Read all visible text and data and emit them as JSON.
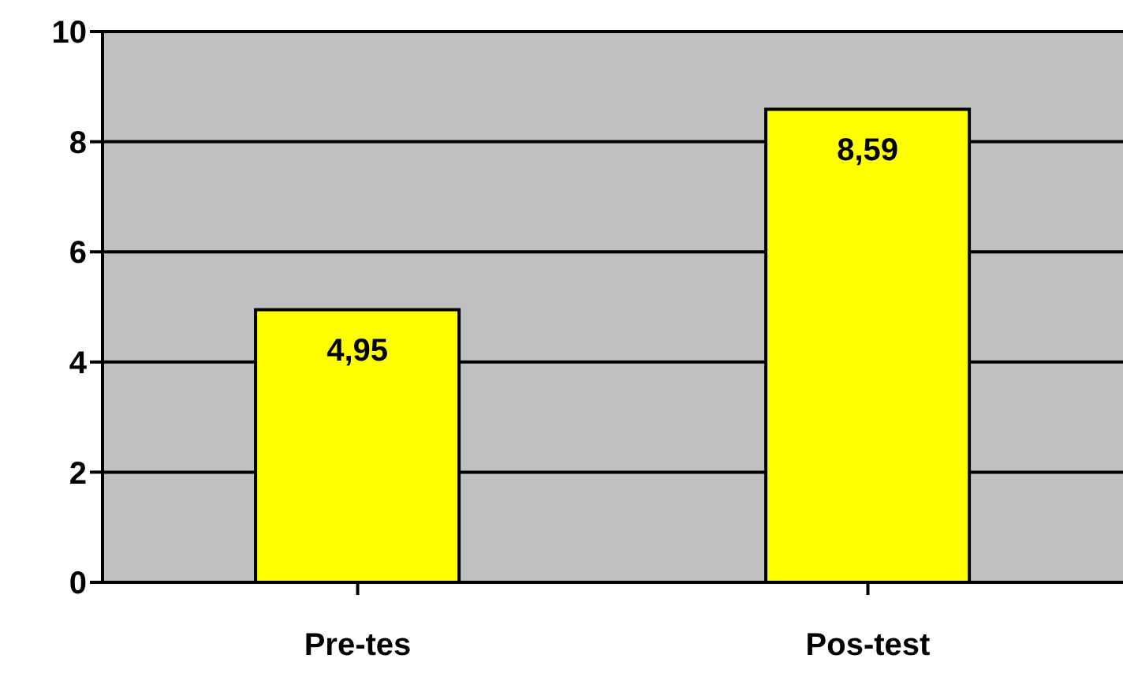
{
  "chart_data": {
    "type": "bar",
    "categories": [
      "Pre-tes",
      "Pos-test"
    ],
    "values": [
      4.95,
      8.59
    ],
    "value_labels": [
      "4,95",
      "8,59"
    ],
    "color": "#ffff00",
    "ylim": [
      0,
      10
    ],
    "yticks": [
      0,
      2,
      4,
      6,
      8,
      10
    ],
    "grid": "y",
    "legend": false
  }
}
